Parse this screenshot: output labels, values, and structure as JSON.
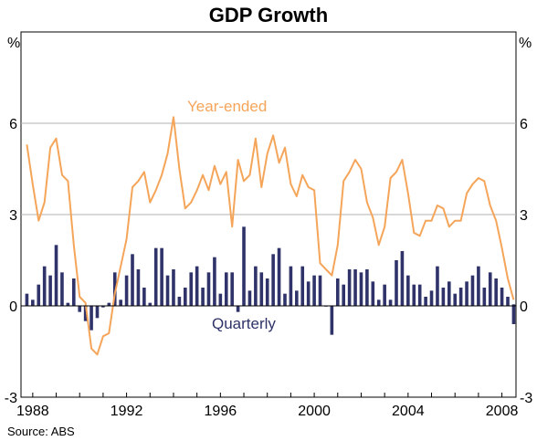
{
  "chart_data": {
    "type": "bar+line",
    "title": "GDP Growth",
    "y_unit_left": "%",
    "y_unit_right": "%",
    "ylim": [
      -3,
      9
    ],
    "yticks": [
      -3,
      0,
      3,
      6
    ],
    "x_ticks": [
      "1988",
      "1992",
      "1996",
      "2000",
      "2004",
      "2008"
    ],
    "x_tick_values": [
      1988,
      1992,
      1996,
      2000,
      2004,
      2008
    ],
    "x_range": [
      1987.5,
      2008.6
    ],
    "grid": "horizontal at 3 and 6",
    "annotations": [
      {
        "text": "Year-ended",
        "series": "year_ended"
      },
      {
        "text": "Quarterly",
        "series": "quarterly"
      }
    ],
    "source": "Source: ABS",
    "colors": {
      "year_ended": "#f5a55a",
      "quarterly": "#2f3369",
      "grid": "#b0b0b0"
    },
    "x": [
      1987.75,
      1988.0,
      1988.25,
      1988.5,
      1988.75,
      1989.0,
      1989.25,
      1989.5,
      1989.75,
      1990.0,
      1990.25,
      1990.5,
      1990.75,
      1991.0,
      1991.25,
      1991.5,
      1991.75,
      1992.0,
      1992.25,
      1992.5,
      1992.75,
      1993.0,
      1993.25,
      1993.5,
      1993.75,
      1994.0,
      1994.25,
      1994.5,
      1994.75,
      1995.0,
      1995.25,
      1995.5,
      1995.75,
      1996.0,
      1996.25,
      1996.5,
      1996.75,
      1997.0,
      1997.25,
      1997.5,
      1997.75,
      1998.0,
      1998.25,
      1998.5,
      1998.75,
      1999.0,
      1999.25,
      1999.5,
      1999.75,
      2000.0,
      2000.25,
      2000.5,
      2000.75,
      2001.0,
      2001.25,
      2001.5,
      2001.75,
      2002.0,
      2002.25,
      2002.5,
      2002.75,
      2003.0,
      2003.25,
      2003.5,
      2003.75,
      2004.0,
      2004.25,
      2004.5,
      2004.75,
      2005.0,
      2005.25,
      2005.5,
      2005.75,
      2006.0,
      2006.25,
      2006.5,
      2006.75,
      2007.0,
      2007.25,
      2007.5,
      2007.75,
      2008.0,
      2008.25,
      2008.5
    ],
    "series": [
      {
        "name": "Quarterly",
        "kind": "bar",
        "values": [
          0.4,
          0.2,
          0.7,
          1.3,
          1.0,
          2.0,
          1.1,
          0.1,
          0.9,
          -0.2,
          -0.5,
          -0.8,
          -0.4,
          -0.05,
          0.1,
          1.1,
          0.2,
          1.0,
          1.7,
          1.2,
          0.6,
          0.1,
          1.9,
          1.9,
          1.0,
          1.2,
          0.3,
          0.6,
          1.1,
          1.3,
          0.6,
          1.1,
          1.6,
          0.4,
          1.1,
          1.1,
          -0.2,
          2.6,
          0.5,
          1.3,
          1.1,
          0.9,
          1.7,
          1.9,
          0.4,
          1.3,
          0.5,
          1.3,
          0.8,
          1.0,
          1.0,
          0.0,
          -0.95,
          0.9,
          0.7,
          1.2,
          1.2,
          1.1,
          1.2,
          0.8,
          0.2,
          0.7,
          0.2,
          1.5,
          1.8,
          1.0,
          0.7,
          0.7,
          0.3,
          0.5,
          1.3,
          0.6,
          0.8,
          0.4,
          0.6,
          0.8,
          1.0,
          1.3,
          0.6,
          1.1,
          0.9,
          0.6,
          0.3,
          0.05
        ]
      },
      {
        "name": "Year-ended",
        "kind": "line",
        "values": [
          5.3,
          4.0,
          2.8,
          3.4,
          5.2,
          5.5,
          4.3,
          4.1,
          2.0,
          0.3,
          0.1,
          -1.4,
          -1.6,
          -1.0,
          -0.9,
          0.4,
          1.3,
          2.2,
          3.9,
          4.1,
          4.4,
          3.4,
          3.8,
          4.3,
          5.0,
          6.2,
          4.5,
          3.2,
          3.4,
          3.8,
          4.3,
          3.8,
          4.6,
          4.0,
          4.4,
          2.6,
          4.8,
          4.1,
          4.3,
          5.5,
          3.9,
          5.0,
          5.6,
          4.7,
          5.2,
          4.0,
          3.6,
          4.3,
          3.9,
          3.8,
          1.4,
          1.2,
          1.0,
          2.0,
          4.1,
          4.4,
          4.8,
          4.5,
          3.4,
          2.9,
          2.0,
          2.6,
          4.2,
          4.4,
          4.8,
          3.7,
          2.4,
          2.3,
          2.8,
          2.8,
          3.3,
          3.2,
          2.6,
          2.8,
          2.8,
          3.7,
          4.0,
          4.2,
          4.1,
          3.3,
          2.8,
          1.9,
          0.9,
          0.2
        ]
      }
    ]
  },
  "bar_last_adjust": -0.6
}
